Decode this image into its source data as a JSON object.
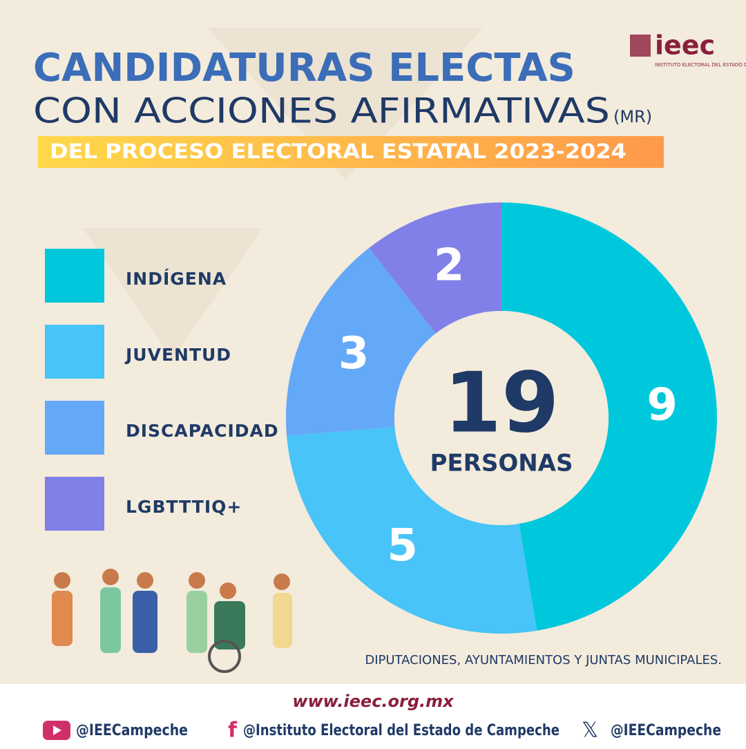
{
  "header": {
    "logo": "ieec",
    "institution": "INSTITUTO ELECTORAL DEL ESTADO DE CAMPECHE"
  },
  "chart_data": {
    "type": "donut",
    "title": "CANDIDATURAS ELECTAS",
    "subtitle": "CON ACCIONES AFIRMATIVAS",
    "subtitle_note": "(MR)",
    "banner": "DEL PROCESO ELECTORAL ESTATAL 2023-2024",
    "categories": [
      "INDÍGENA",
      "JUVENTUD",
      "DISCAPACIDAD",
      "LGBTTTIQ+"
    ],
    "values": [
      9,
      5,
      3,
      2
    ],
    "colors": [
      "#00c8dc",
      "#48c4f8",
      "#64a8f8",
      "#8080e8"
    ],
    "center_value": 19,
    "center_label": "PERSONAS",
    "note": "DIPUTACIONES, AYUNTAMIENTOS Y JUNTAS MUNICIPALES."
  },
  "footer": {
    "website": "www.ieec.org.mx",
    "youtube": "@IEECampeche",
    "facebook": "@Instituto Electoral del Estado de Campeche",
    "x": "@IEECampeche"
  }
}
